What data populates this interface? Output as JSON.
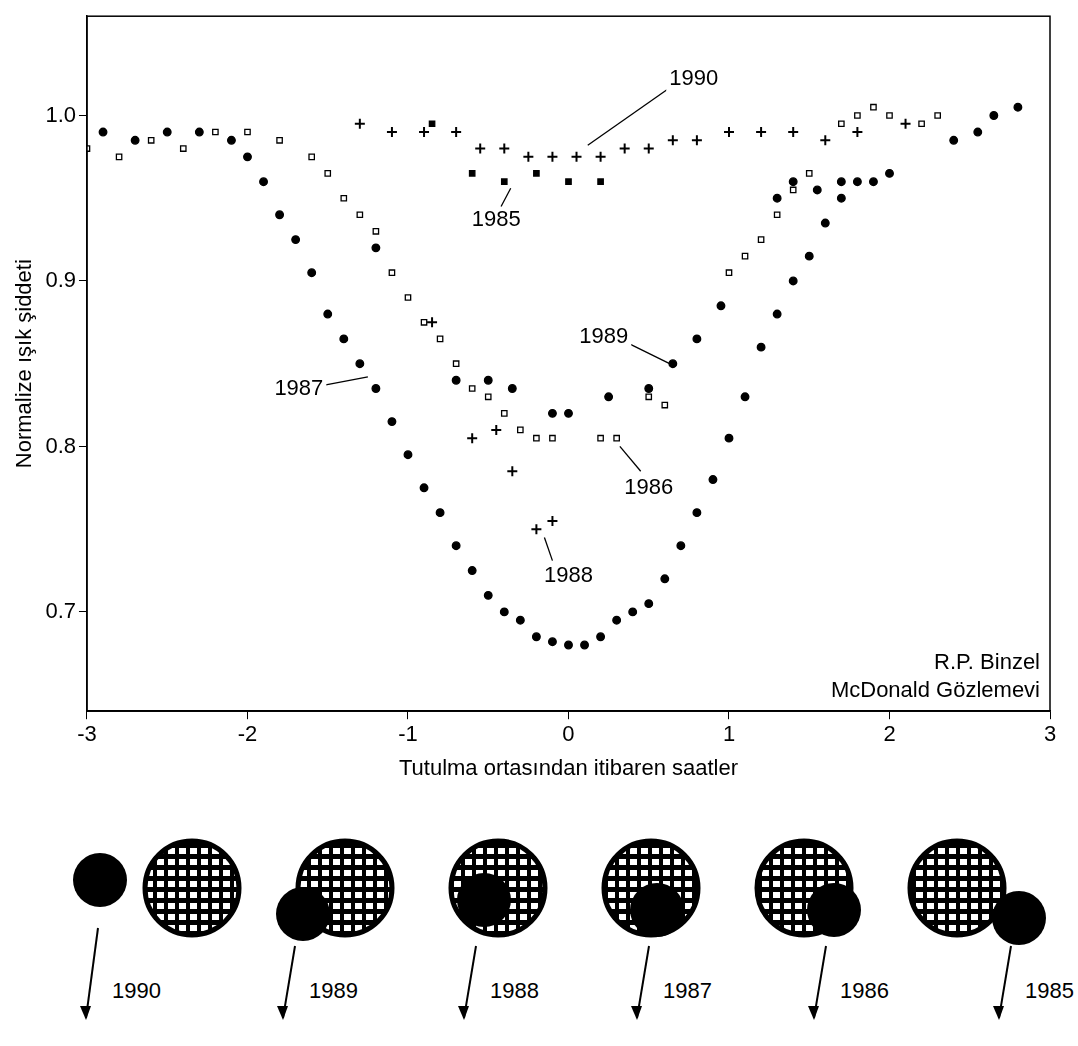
{
  "chart_data": {
    "type": "scatter",
    "x_label": "Tutulma ortasından itibaren saatler",
    "y_label": "Normalize ışık şiddeti",
    "xlim": [
      -3,
      3
    ],
    "xticks": [
      -3,
      -2,
      -1,
      0,
      1,
      2,
      3
    ],
    "ylim": [
      0.64,
      1.06
    ],
    "yticks": [
      0.7,
      0.8,
      0.9,
      {
        "value": 1,
        "label": "1.0"
      }
    ],
    "grid": false,
    "series": [
      {
        "name": "1985",
        "color": "#000000",
        "marker": "square",
        "x": [
          -0.85,
          -0.6,
          -0.4,
          -0.2,
          0,
          0.2
        ],
        "values": [
          0.995,
          0.965,
          0.96,
          0.965,
          0.96,
          0.96
        ]
      },
      {
        "name": "1986",
        "color": "#000000",
        "marker": "open_square",
        "x": [
          -3,
          -2.8,
          -2.6,
          -2.4,
          -2.2,
          -2,
          -1.8,
          -1.6,
          -1.5,
          -1.4,
          -1.3,
          -1.2,
          -1.1,
          -1.0,
          -0.9,
          -0.8,
          -0.7,
          -0.6,
          -0.5,
          -0.4,
          -0.3,
          -0.2,
          -0.1,
          0.2,
          0.3,
          0.5,
          0.6,
          1.0,
          1.1,
          1.2,
          1.3,
          1.4,
          1.5,
          1.7,
          1.8,
          1.9,
          2.0,
          2.2,
          2.3
        ],
        "values": [
          0.98,
          0.975,
          0.985,
          0.98,
          0.99,
          0.99,
          0.985,
          0.975,
          0.965,
          0.95,
          0.94,
          0.93,
          0.905,
          0.89,
          0.875,
          0.865,
          0.85,
          0.835,
          0.83,
          0.82,
          0.81,
          0.805,
          0.805,
          0.805,
          0.805,
          0.83,
          0.825,
          0.905,
          0.915,
          0.925,
          0.94,
          0.955,
          0.965,
          0.995,
          1.0,
          1.005,
          1.0,
          0.995,
          1.0
        ]
      },
      {
        "name": "1987",
        "color": "#000000",
        "marker": "circle",
        "x": [
          -2.9,
          -2.7,
          -2.5,
          -2.3,
          -2.1,
          -2.0,
          -1.9,
          -1.8,
          -1.7,
          -1.6,
          -1.5,
          -1.4,
          -1.3,
          -1.2,
          -1.1,
          -1.0,
          -0.9,
          -0.8,
          -0.7,
          -0.6,
          -0.5,
          -0.4,
          -0.3,
          -0.2,
          -0.1,
          0,
          0.1,
          0.2,
          0.3,
          0.4,
          0.5,
          0.6,
          0.7,
          0.8,
          0.9,
          1.0,
          1.1,
          1.2,
          1.3,
          1.4,
          1.5,
          1.6,
          1.7,
          1.8,
          1.9,
          2.0
        ],
        "values": [
          0.99,
          0.985,
          0.99,
          0.99,
          0.985,
          0.975,
          0.96,
          0.94,
          0.925,
          0.905,
          0.88,
          0.865,
          0.85,
          0.835,
          0.815,
          0.795,
          0.775,
          0.76,
          0.74,
          0.725,
          0.71,
          0.7,
          0.695,
          0.685,
          0.682,
          0.68,
          0.68,
          0.685,
          0.695,
          0.7,
          0.705,
          0.72,
          0.74,
          0.76,
          0.78,
          0.805,
          0.83,
          0.86,
          0.88,
          0.9,
          0.915,
          0.935,
          0.95,
          0.96,
          0.96,
          0.965
        ]
      },
      {
        "name": "1988",
        "color": "#000000",
        "marker": "cross",
        "x": [
          -0.85,
          -0.6,
          -0.45,
          -0.35,
          -0.2,
          -0.1
        ],
        "values": [
          0.875,
          0.805,
          0.81,
          0.785,
          0.75,
          0.755
        ]
      },
      {
        "name": "1989",
        "color": "#000000",
        "marker": "circle",
        "x": [
          -1.2,
          -0.7,
          -0.5,
          -0.35,
          -0.1,
          0,
          0.25,
          0.5,
          0.65,
          0.8,
          0.95,
          1.3,
          1.4,
          1.55,
          1.7,
          2.4,
          2.55,
          2.65,
          2.8
        ],
        "values": [
          0.92,
          0.84,
          0.84,
          0.835,
          0.82,
          0.82,
          0.83,
          0.835,
          0.85,
          0.865,
          0.885,
          0.95,
          0.96,
          0.955,
          0.96,
          0.985,
          0.99,
          1.0,
          1.005
        ]
      },
      {
        "name": "1990",
        "color": "#000000",
        "marker": "cross",
        "x": [
          -1.3,
          -1.1,
          -0.9,
          -0.7,
          -0.55,
          -0.4,
          -0.25,
          -0.1,
          0.05,
          0.2,
          0.35,
          0.5,
          0.65,
          0.8,
          1.0,
          1.2,
          1.4,
          1.6,
          1.8,
          2.1
        ],
        "values": [
          0.995,
          0.99,
          0.99,
          0.99,
          0.98,
          0.98,
          0.975,
          0.975,
          0.975,
          0.975,
          0.98,
          0.98,
          0.985,
          0.985,
          0.99,
          0.99,
          0.99,
          0.985,
          0.99,
          0.995
        ]
      }
    ],
    "annotations": [
      "R.P. Binzel",
      "McDonald Gözlemevi"
    ]
  },
  "diagram": {
    "labels": [
      "1990",
      "1989",
      "1988",
      "1987",
      "1986",
      "1985"
    ]
  }
}
